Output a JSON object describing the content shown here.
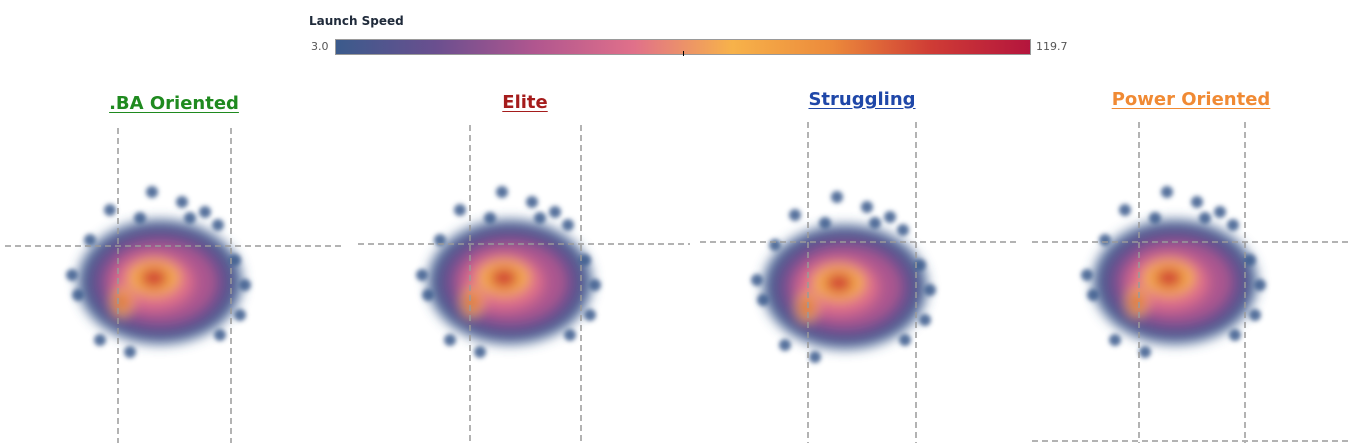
{
  "legend": {
    "title": "Launch Speed",
    "min_label": "3.0",
    "max_label": "119.7",
    "colors": [
      "#3b5b8c",
      "#6a4f8f",
      "#b0568f",
      "#e0708a",
      "#f7b24a",
      "#ec8a3b",
      "#cf3c35",
      "#b4153d"
    ]
  },
  "chart_data": [
    {
      "type": "heatmap",
      "title": ".BA Oriented",
      "title_color": "#1f8a1f",
      "value_range": [
        3.0,
        119.7
      ],
      "zone_lines": true
    },
    {
      "type": "heatmap",
      "title": "Elite",
      "title_color": "#a51c1c",
      "value_range": [
        3.0,
        119.7
      ],
      "zone_lines": true
    },
    {
      "type": "heatmap",
      "title": "Struggling",
      "title_color": "#1f47a8",
      "value_range": [
        3.0,
        119.7
      ],
      "zone_lines": true
    },
    {
      "type": "heatmap",
      "title": "Power Oriented",
      "title_color": "#f08a34",
      "value_range": [
        3.0,
        119.7
      ],
      "zone_lines": true
    }
  ]
}
